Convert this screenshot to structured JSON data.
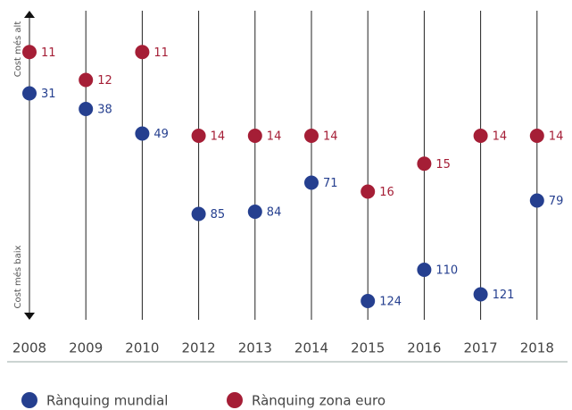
{
  "chart_data": {
    "type": "dot",
    "categories": [
      "2008",
      "2009",
      "2010",
      "2012",
      "2013",
      "2014",
      "2015",
      "2016",
      "2017",
      "2018"
    ],
    "series": [
      {
        "name": "Rànquing mundial",
        "color": "#253f8f",
        "values": [
          31,
          38,
          49,
          85,
          84,
          71,
          124,
          110,
          121,
          79
        ]
      },
      {
        "name": "Rànquing zona euro",
        "color": "#a51e36",
        "axis": "y2",
        "values": [
          11,
          12,
          11,
          14,
          14,
          14,
          16,
          15,
          14,
          14
        ]
      }
    ],
    "ylim": [
      0,
      130
    ],
    "y2lim": [
      10,
      20.4
    ],
    "y_inverted": true,
    "axis_top_label": "Cost més alt",
    "axis_bottom_label": "Cost més baix"
  }
}
